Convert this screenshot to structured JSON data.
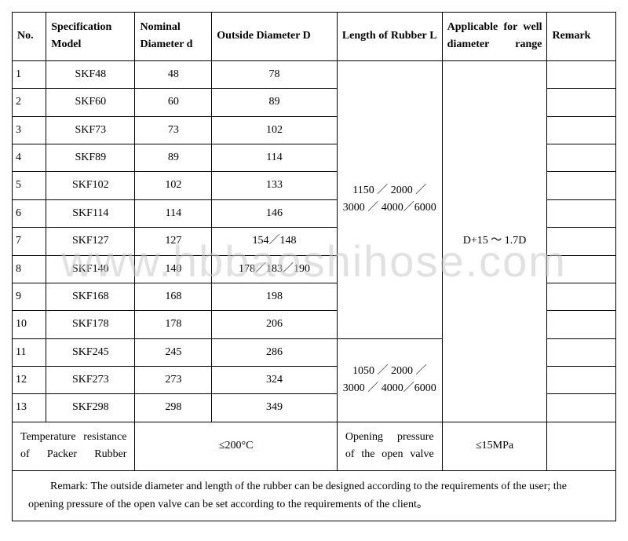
{
  "headers": {
    "no": "No.",
    "spec": "Specification Model",
    "nom": "Nominal Diameter d",
    "out": "Outside Diameter D",
    "len": "Length of Rubber L",
    "app": "Applicable for well diameter range",
    "rem": "Remark"
  },
  "rows": [
    {
      "no": "1",
      "spec": "SKF48",
      "nom": "48",
      "out": "78"
    },
    {
      "no": "2",
      "spec": "SKF60",
      "nom": "60",
      "out": "89"
    },
    {
      "no": "3",
      "spec": "SKF73",
      "nom": "73",
      "out": "102"
    },
    {
      "no": "4",
      "spec": "SKF89",
      "nom": "89",
      "out": "114"
    },
    {
      "no": "5",
      "spec": "SKF102",
      "nom": "102",
      "out": "133"
    },
    {
      "no": "6",
      "spec": "SKF114",
      "nom": "114",
      "out": "146"
    },
    {
      "no": "7",
      "spec": "SKF127",
      "nom": "127",
      "out": "154／148"
    },
    {
      "no": "8",
      "spec": "SKF140",
      "nom": "140",
      "out": "178／183／190"
    },
    {
      "no": "9",
      "spec": "SKF168",
      "nom": "168",
      "out": "198"
    },
    {
      "no": "10",
      "spec": "SKF178",
      "nom": "178",
      "out": "206"
    },
    {
      "no": "11",
      "spec": "SKF245",
      "nom": "245",
      "out": "286"
    },
    {
      "no": "12",
      "spec": "SKF273",
      "nom": "273",
      "out": "324"
    },
    {
      "no": "13",
      "spec": "SKF298",
      "nom": "298",
      "out": "349"
    }
  ],
  "len1": "1150 ／ 2000 ／ 3000 ／ 4000／6000",
  "len2": "1050 ／ 2000 ／ 3000 ／ 4000／6000",
  "app_range": "D+15 ～ 1.7D",
  "footer": {
    "temp_label": "Temperature resistance of Packer Rubber",
    "temp_value": "≤200°C",
    "open_label": "Opening pressure of the open valve",
    "open_value": "≤15MPa"
  },
  "remark": "Remark: The outside diameter and length of the rubber can be designed according to the requirements of the user; the opening pressure of the open valve can be set according to the requirements of the client。",
  "watermark": "www.hbbaoshihose.com",
  "colors": {
    "bg": "#ffffff",
    "border": "#000000",
    "text": "#000000",
    "watermark": "rgba(200,200,200,0.55)"
  },
  "fontsize": {
    "body": 14,
    "watermark": 56
  }
}
